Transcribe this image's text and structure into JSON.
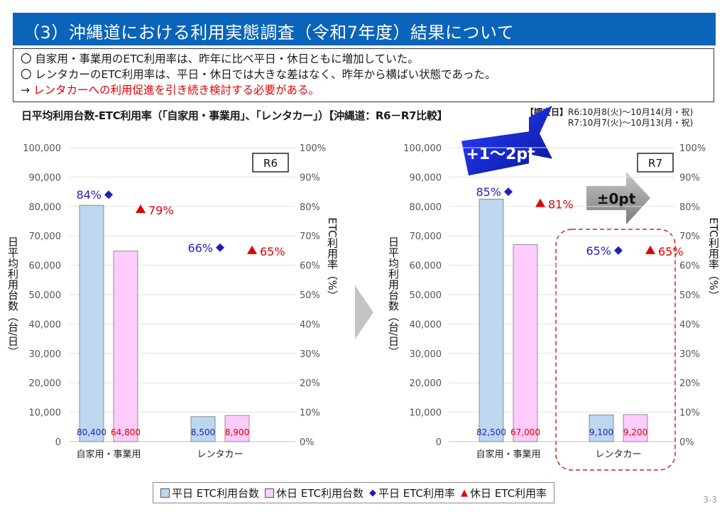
{
  "header": {
    "title": "（3）沖縄道における利用実態調査（令和7年度）結果について"
  },
  "summary": {
    "line1": "〇 自家用・事業用のETC利用率は、昨年に比べ平日・休日ともに増加していた。",
    "line2": "〇 レンタカーのETC利用率は、平日・休日では大きな差はなく、昨年から横ばい状態であった。",
    "line3_arrow": "→",
    "line3_text": "レンタカーへの利用促進を引き続き検討する必要がある。"
  },
  "chart_caption": "日平均利用台数-ETC利用率（「自家用・事業用」、「レンタカー」）【沖縄道：R6－R7比較】",
  "survey_dates": {
    "label": "【調査日】",
    "r6": "R6:10月8(火)～10月14(月・祝)",
    "r7": "R7:10月7(火)～10月13(月・祝)"
  },
  "annotations": {
    "increase": "+1～2pt",
    "flat": "±0pt"
  },
  "legend": {
    "weekday_count": "平日 ETC利用台数",
    "holiday_count": "休日 ETC利用台数",
    "weekday_rate": "平日 ETC利用率",
    "holiday_rate": "休日 ETC利用率"
  },
  "colors": {
    "title_bg": "#0a64b9",
    "weekday_bar": "#bdd7ee",
    "holiday_bar": "#ffccff",
    "weekday_marker": "#1f1fbf",
    "holiday_marker": "#e00000",
    "emphasis": "#e00000"
  },
  "page_number": "3-3",
  "chart_data": [
    {
      "type": "bar",
      "title": "R6",
      "categories": [
        "自家用・事業用",
        "レンタカー"
      ],
      "series": [
        {
          "name": "平日 ETC利用台数",
          "values": [
            80400,
            8500
          ],
          "labels": [
            "80,400",
            "8,500"
          ]
        },
        {
          "name": "休日 ETC利用台数",
          "values": [
            64800,
            8900
          ],
          "labels": [
            "64,800",
            "8,900"
          ]
        },
        {
          "name": "平日 ETC利用率",
          "values": [
            84,
            66
          ],
          "labels": [
            "84%",
            "66%"
          ]
        },
        {
          "name": "休日 ETC利用率",
          "values": [
            79,
            65
          ],
          "labels": [
            "79%",
            "65%"
          ]
        }
      ],
      "ylabel": "日平均利用台数（台/日）",
      "y2label": "ETC利用率（%）",
      "ylim": [
        0,
        100000
      ],
      "y2lim": [
        0,
        100
      ],
      "yticks": [
        "0",
        "10,000",
        "20,000",
        "30,000",
        "40,000",
        "50,000",
        "60,000",
        "70,000",
        "80,000",
        "90,000",
        "100,000"
      ],
      "y2ticks": [
        "0%",
        "10%",
        "20%",
        "30%",
        "40%",
        "50%",
        "60%",
        "70%",
        "80%",
        "90%",
        "100%"
      ]
    },
    {
      "type": "bar",
      "title": "R7",
      "categories": [
        "自家用・事業用",
        "レンタカー"
      ],
      "series": [
        {
          "name": "平日 ETC利用台数",
          "values": [
            82500,
            9100
          ],
          "labels": [
            "82,500",
            "9,100"
          ]
        },
        {
          "name": "休日 ETC利用台数",
          "values": [
            67000,
            9200
          ],
          "labels": [
            "67,000",
            "9,200"
          ]
        },
        {
          "name": "平日 ETC利用率",
          "values": [
            85,
            65
          ],
          "labels": [
            "85%",
            "65%"
          ]
        },
        {
          "name": "休日 ETC利用率",
          "values": [
            81,
            65
          ],
          "labels": [
            "81%",
            "65%"
          ]
        }
      ],
      "ylabel": "日平均利用台数（台/日）",
      "y2label": "ETC利用率（%）",
      "ylim": [
        0,
        100000
      ],
      "y2lim": [
        0,
        100
      ],
      "yticks": [
        "0",
        "10,000",
        "20,000",
        "30,000",
        "40,000",
        "50,000",
        "60,000",
        "70,000",
        "80,000",
        "90,000",
        "100,000"
      ],
      "y2ticks": [
        "0%",
        "10%",
        "20%",
        "30%",
        "40%",
        "50%",
        "60%",
        "70%",
        "80%",
        "90%",
        "100%"
      ]
    }
  ]
}
